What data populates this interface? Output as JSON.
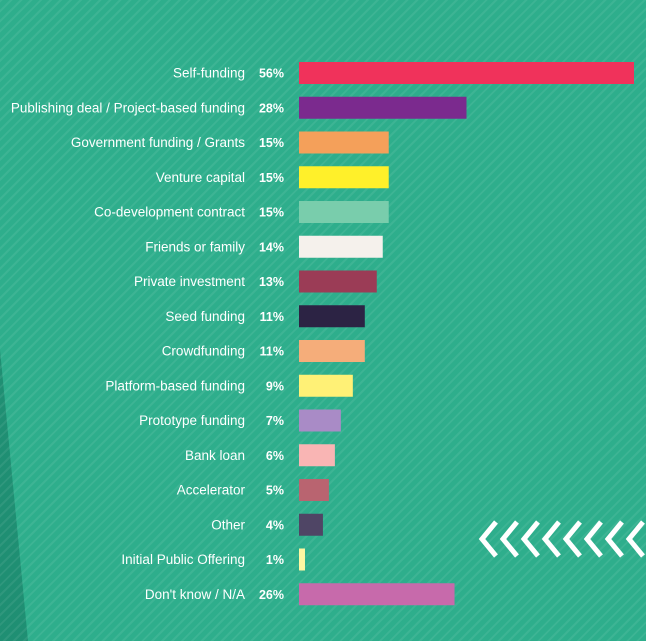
{
  "chart_data": {
    "type": "bar",
    "orientation": "horizontal",
    "categories": [
      "Self-funding",
      "Publishing deal / Project-based funding",
      "Government funding / Grants",
      "Venture capital",
      "Co-development contract",
      "Friends or family",
      "Private investment",
      "Seed funding",
      "Crowdfunding",
      "Platform-based funding",
      "Prototype funding",
      "Bank loan",
      "Accelerator",
      "Other",
      "Initial Public Offering",
      "Don't know / N/A"
    ],
    "values": [
      56,
      28,
      15,
      15,
      15,
      14,
      13,
      11,
      11,
      9,
      7,
      6,
      5,
      4,
      1,
      26
    ],
    "value_labels": [
      "56%",
      "28%",
      "15%",
      "15%",
      "15%",
      "14%",
      "13%",
      "11%",
      "11%",
      "9%",
      "7%",
      "6%",
      "5%",
      "4%",
      "1%",
      "26%"
    ],
    "bar_colors": [
      "#f0325b",
      "#7b2a8e",
      "#f4a05a",
      "#fff02a",
      "#79cdac",
      "#f5f1ec",
      "#9b3c56",
      "#2c2344",
      "#f5ad7a",
      "#fff176",
      "#a98bc6",
      "#f9b5b4",
      "#b96470",
      "#4f4565",
      "#fff7a2",
      "#c76aab"
    ],
    "xlim": [
      0,
      56
    ],
    "title": "",
    "xlabel": "",
    "ylabel": "",
    "grid": false,
    "legend": "none"
  },
  "colors": {
    "background": "#2eae8c",
    "background_dark": "#1f8f73",
    "text": "#ffffff"
  },
  "decoration": {
    "icon": "chevron-left-icon",
    "count": 8,
    "color": "#ffffff"
  }
}
